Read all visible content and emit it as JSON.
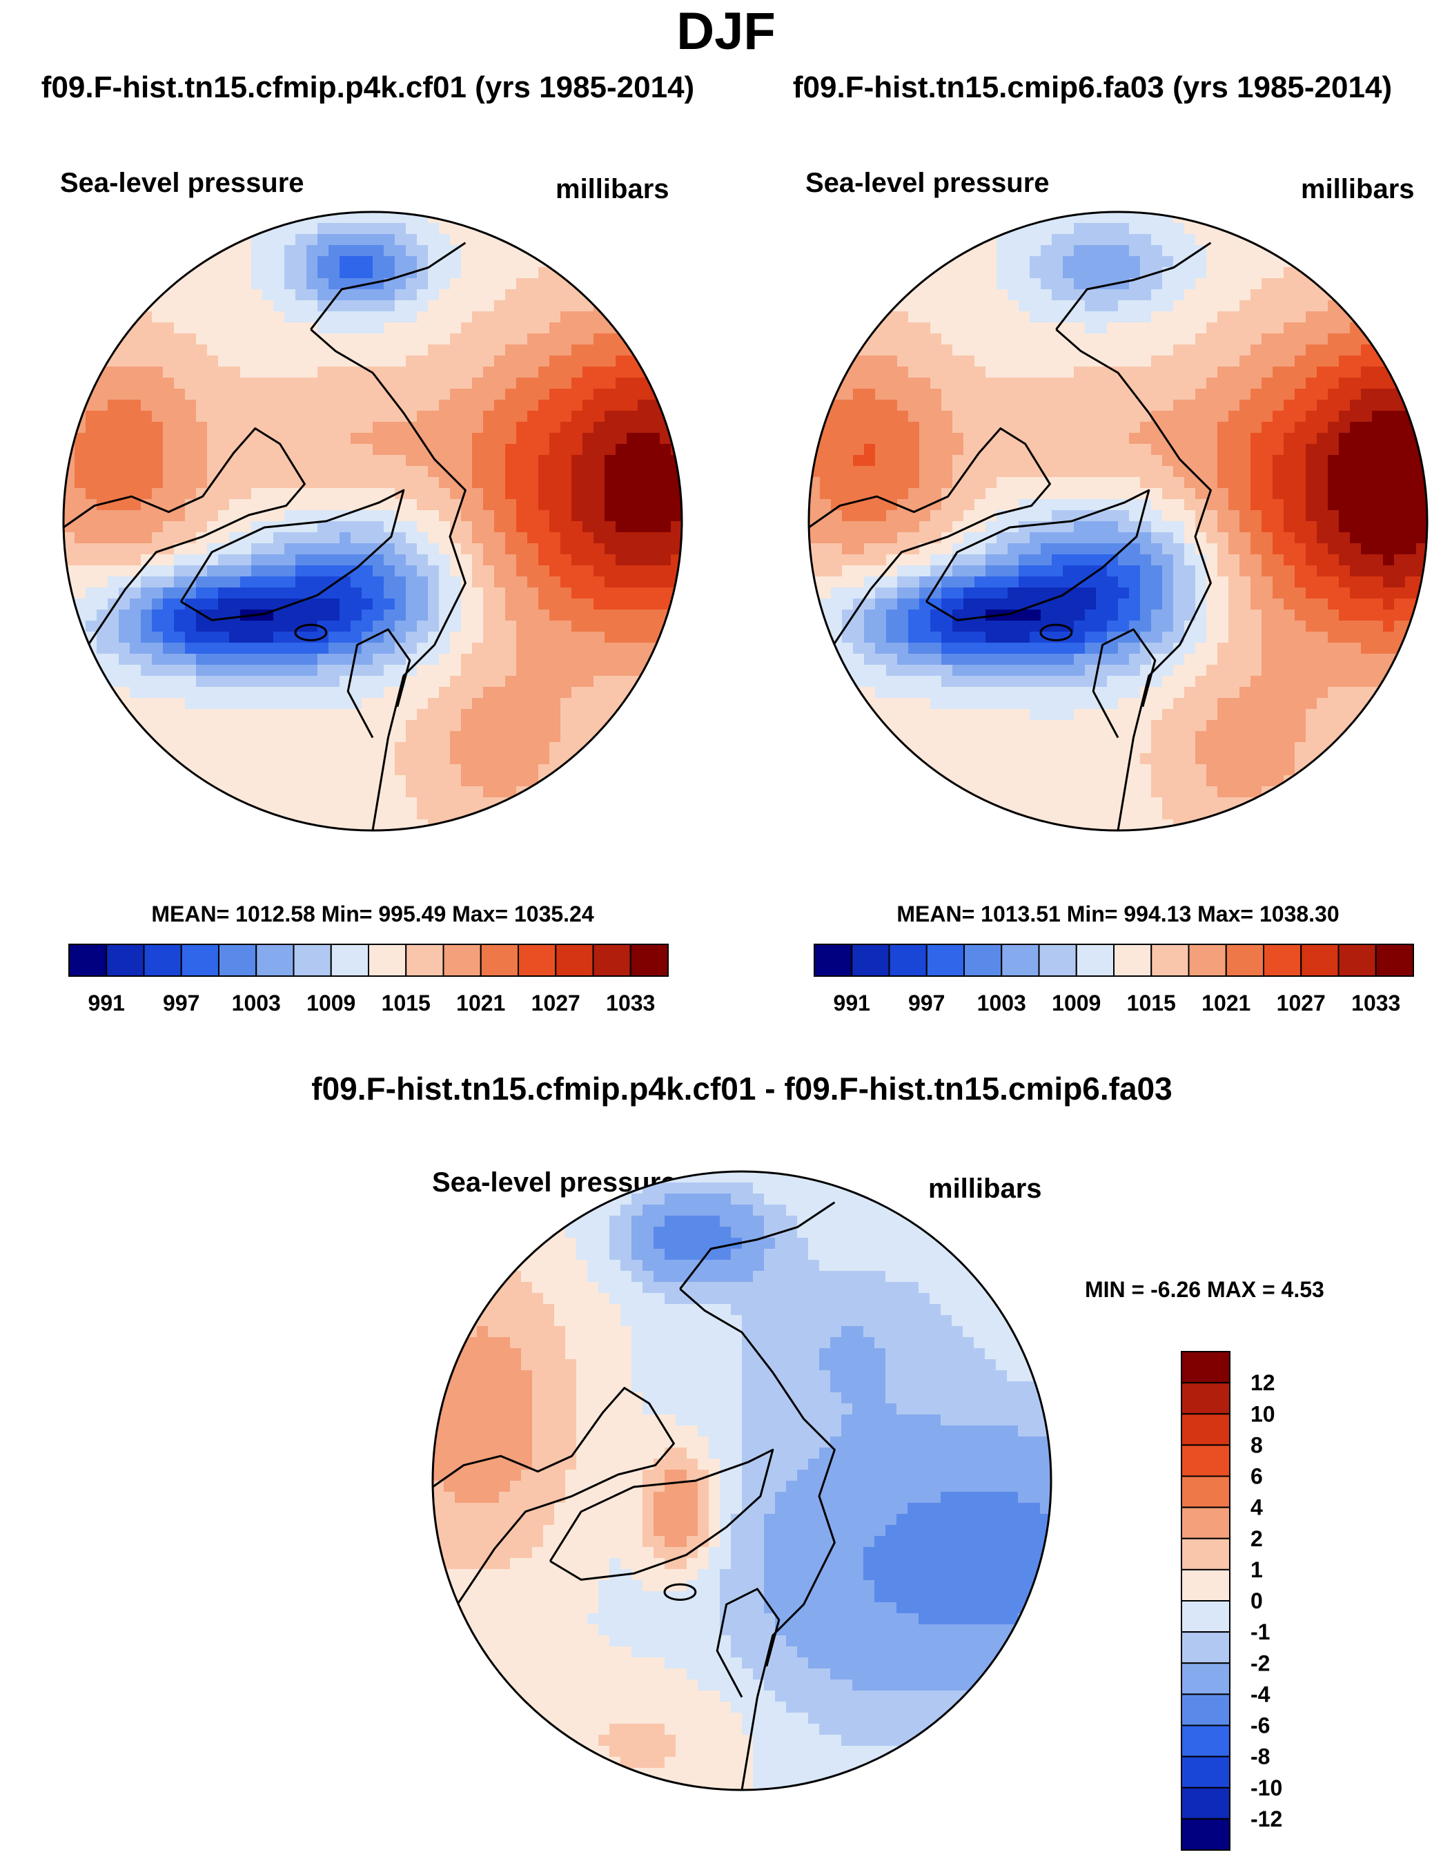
{
  "figure": {
    "season": "DJF",
    "case_a": "f09.F-hist.tn15.cfmip.p4k.cf01 (yrs 1985-2014)",
    "case_b": "f09.F-hist.tn15.cmip6.fa03 (yrs 1985-2014)",
    "diff_title": "f09.F-hist.tn15.cfmip.p4k.cf01 - f09.F-hist.tn15.cmip6.fa03"
  },
  "panels": [
    {
      "variable": "Sea-level pressure",
      "units": "millibars",
      "stats": "MEAN= 1012.58  Min= 995.49  Max= 1035.24"
    },
    {
      "variable": "Sea-level pressure",
      "units": "millibars",
      "stats": "MEAN= 1013.51  Min= 994.13  Max= 1038.30"
    },
    {
      "variable": "Sea-level pressure",
      "units": "millibars",
      "stats": "MIN =  -6.26 MAX =   4.53"
    }
  ],
  "chart_data": [
    {
      "type": "contour-map",
      "projection": "north-polar-stereographic",
      "title": "f09.F-hist.tn15.cfmip.p4k.cf01 (yrs 1985-2014)",
      "variable": "Sea-level pressure",
      "units": "millibars",
      "mean": 1012.58,
      "min": 995.49,
      "max": 1035.24,
      "levels": [
        991,
        994,
        997,
        1000,
        1003,
        1006,
        1009,
        1012,
        1015,
        1018,
        1021,
        1024,
        1027,
        1030,
        1033
      ],
      "colorbar_labels": [
        "991",
        "997",
        "1003",
        "1009",
        "1015",
        "1021",
        "1027",
        "1033"
      ],
      "colors": [
        "#000080",
        "#0d2ab8",
        "#1a46d8",
        "#2f66ea",
        "#5a8ae9",
        "#86aaee",
        "#b1c9f2",
        "#d9e7f8",
        "#fbe8da",
        "#f9c6ab",
        "#f3a07b",
        "#ef7849",
        "#e94f22",
        "#d53512",
        "#b21e0c",
        "#800000"
      ]
    },
    {
      "type": "contour-map",
      "projection": "north-polar-stereographic",
      "title": "f09.F-hist.tn15.cmip6.fa03 (yrs 1985-2014)",
      "variable": "Sea-level pressure",
      "units": "millibars",
      "mean": 1013.51,
      "min": 994.13,
      "max": 1038.3,
      "levels": [
        991,
        994,
        997,
        1000,
        1003,
        1006,
        1009,
        1012,
        1015,
        1018,
        1021,
        1024,
        1027,
        1030,
        1033
      ],
      "colorbar_labels": [
        "991",
        "997",
        "1003",
        "1009",
        "1015",
        "1021",
        "1027",
        "1033"
      ],
      "colors": [
        "#000080",
        "#0d2ab8",
        "#1a46d8",
        "#2f66ea",
        "#5a8ae9",
        "#86aaee",
        "#b1c9f2",
        "#d9e7f8",
        "#fbe8da",
        "#f9c6ab",
        "#f3a07b",
        "#ef7849",
        "#e94f22",
        "#d53512",
        "#b21e0c",
        "#800000"
      ]
    },
    {
      "type": "contour-map",
      "projection": "north-polar-stereographic",
      "title": "f09.F-hist.tn15.cfmip.p4k.cf01 - f09.F-hist.tn15.cmip6.fa03",
      "variable": "Sea-level pressure",
      "units": "millibars",
      "min": -6.26,
      "max": 4.53,
      "levels": [
        -12,
        -10,
        -8,
        -6,
        -4,
        -2,
        -1,
        0,
        1,
        2,
        4,
        6,
        8,
        10,
        12
      ],
      "colorbar_labels": [
        "12",
        "10",
        "8",
        "6",
        "4",
        "2",
        "1",
        "0",
        "-1",
        "-2",
        "-4",
        "-6",
        "-8",
        "-10",
        "-12"
      ],
      "colors": [
        "#800000",
        "#b21e0c",
        "#d53512",
        "#e94f22",
        "#ef7849",
        "#f3a07b",
        "#f9c6ab",
        "#fbe8da",
        "#d9e7f8",
        "#b1c9f2",
        "#86aaee",
        "#5a8ae9",
        "#2f66ea",
        "#1a46d8",
        "#0d2ab8",
        "#000080"
      ]
    }
  ]
}
